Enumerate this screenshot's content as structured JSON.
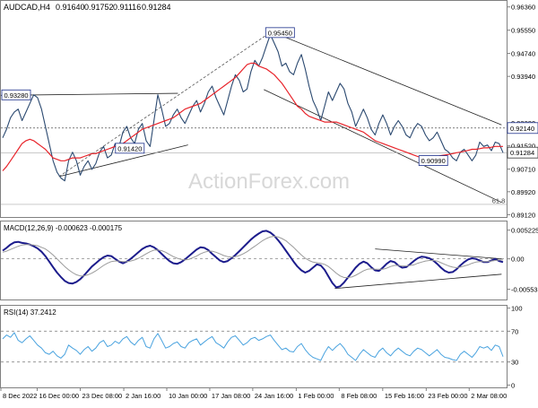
{
  "chart_data": [
    {
      "type": "line",
      "panel": "price",
      "title": "AUDCAD,H4",
      "ohlc": [
        "0.91640",
        "0.91752",
        "0.91116",
        "0.91284"
      ],
      "watermark": "ActionForex.com",
      "y_ticks": [
        {
          "v": 0.9636,
          "label": "0.96360"
        },
        {
          "v": 0.9555,
          "label": "0.95550"
        },
        {
          "v": 0.9474,
          "label": "0.94740"
        },
        {
          "v": 0.9394,
          "label": "0.93940"
        },
        {
          "v": 0.9232,
          "label": "0.92320"
        },
        {
          "v": 0.9152,
          "label": "0.91520"
        },
        {
          "v": 0.9071,
          "label": "0.90710"
        },
        {
          "v": 0.8992,
          "label": "0.89920"
        },
        {
          "v": 0.8912,
          "label": "0.89120"
        }
      ],
      "ylim": [
        0.8904,
        0.9657
      ],
      "grid": false,
      "price_flag": {
        "v": 0.91284,
        "label": "0.91284"
      },
      "level_tag": {
        "v": 0.9214,
        "label": "0.92140"
      },
      "annotations": [
        {
          "label": "0.95450",
          "v": 0.9545,
          "x": 0.552
        },
        {
          "label": "0.93280",
          "v": 0.9328,
          "x": 0.003
        },
        {
          "label": "0.91420",
          "v": 0.9142,
          "x": 0.255
        },
        {
          "label": "0.90990",
          "v": 0.9099,
          "x": 0.855
        },
        {
          "label": "61.8",
          "v": 0.8948,
          "x": 0.997
        }
      ],
      "series": [
        {
          "values": [
            0.918,
            0.921,
            0.925,
            0.927,
            0.928,
            0.924,
            0.927,
            0.93,
            0.933,
            0.932,
            0.928,
            0.922,
            0.916,
            0.91,
            0.906,
            0.904,
            0.903,
            0.91,
            0.913,
            0.91,
            0.905,
            0.908,
            0.91,
            0.907,
            0.909,
            0.913,
            0.915,
            0.911,
            0.912,
            0.916,
            0.915,
            0.92,
            0.922,
            0.918,
            0.916,
            0.921,
            0.923,
            0.917,
            0.915,
            0.924,
            0.933,
            0.928,
            0.922,
            0.923,
            0.926,
            0.928,
            0.925,
            0.923,
            0.926,
            0.929,
            0.931,
            0.927,
            0.93,
            0.934,
            0.936,
            0.932,
            0.929,
            0.926,
            0.931,
            0.936,
            0.94,
            0.938,
            0.934,
            0.935,
            0.941,
            0.945,
            0.943,
            0.946,
            0.95,
            0.954,
            0.951,
            0.948,
            0.943,
            0.944,
            0.941,
            0.94,
            0.944,
            0.947,
            0.942,
            0.936,
            0.931,
            0.928,
            0.924,
            0.929,
            0.934,
            0.931,
            0.934,
            0.937,
            0.935,
            0.93,
            0.927,
            0.922,
            0.925,
            0.928,
            0.925,
            0.921,
            0.919,
            0.923,
            0.926,
            0.923,
            0.919,
            0.922,
            0.924,
            0.922,
            0.919,
            0.918,
            0.921,
            0.923,
            0.922,
            0.919,
            0.917,
            0.918,
            0.92,
            0.917,
            0.914,
            0.913,
            0.911,
            0.91,
            0.913,
            0.914,
            0.912,
            0.91,
            0.912,
            0.9165,
            0.915,
            0.9155,
            0.9135,
            0.9165,
            0.916,
            0.9128
          ]
        },
        {
          "values": [
            0.9065,
            0.908,
            0.91,
            0.912,
            0.914,
            0.916,
            0.917,
            0.9175,
            0.917,
            0.916,
            0.915,
            0.914,
            0.9125,
            0.911,
            0.9105,
            0.91,
            0.91,
            0.9105,
            0.911,
            0.911,
            0.911,
            0.9115,
            0.912,
            0.9125,
            0.9125,
            0.913,
            0.9135,
            0.914,
            0.9145,
            0.915,
            0.9155,
            0.916,
            0.917,
            0.918,
            0.919,
            0.92,
            0.921,
            0.9215,
            0.922,
            0.9225,
            0.923,
            0.9235,
            0.924,
            0.9245,
            0.925,
            0.926,
            0.927,
            0.928,
            0.9285,
            0.929,
            0.9295,
            0.93,
            0.931,
            0.932,
            0.933,
            0.934,
            0.935,
            0.936,
            0.937,
            0.938,
            0.939,
            0.9405,
            0.942,
            0.9435,
            0.944,
            0.944,
            0.943,
            0.9425,
            0.942,
            0.941,
            0.94,
            0.9385,
            0.937,
            0.935,
            0.933,
            0.931,
            0.929,
            0.928,
            0.9265,
            0.9255,
            0.925,
            0.9245,
            0.924,
            0.9235,
            0.9235,
            0.9235,
            0.9235,
            0.923,
            0.9225,
            0.922,
            0.9215,
            0.921,
            0.9205,
            0.92,
            0.919,
            0.918,
            0.917,
            0.9165,
            0.916,
            0.9155,
            0.915,
            0.9145,
            0.914,
            0.9135,
            0.913,
            0.9125,
            0.912,
            0.9115,
            0.911,
            0.911,
            0.911,
            0.9112,
            0.9115,
            0.9118,
            0.912,
            0.9122,
            0.9125,
            0.9128,
            0.913,
            0.9133,
            0.9136,
            0.914,
            0.914,
            0.9142,
            0.9145,
            0.9145,
            0.9147,
            0.915,
            0.915,
            0.915
          ]
        }
      ]
    },
    {
      "type": "line",
      "panel": "macd",
      "title": "MACD(12,26,9) -0.000623 -0.000175",
      "y_ticks": [
        {
          "v": 0.00523,
          "label": "0.005225"
        },
        {
          "v": 0.0,
          "label": "0.00"
        },
        {
          "v": -0.00553,
          "label": "-0.00553"
        }
      ],
      "ylim": [
        -0.0074,
        0.0068
      ],
      "series": [
        {
          "values": [
            0.0015,
            0.002,
            0.0026,
            0.003,
            0.0031,
            0.0029,
            0.0028,
            0.0026,
            0.0023,
            0.0019,
            0.0013,
            0.0005,
            -0.0005,
            -0.0015,
            -0.0025,
            -0.0033,
            -0.004,
            -0.0044,
            -0.0045,
            -0.0042,
            -0.0037,
            -0.003,
            -0.0022,
            -0.0014,
            -0.0008,
            -0.0002,
            0.0003,
            0.0006,
            0.0005,
            0.0,
            -0.0005,
            -0.0008,
            -0.0005,
            0.0,
            0.0006,
            0.0012,
            0.0018,
            0.0022,
            0.0024,
            0.0021,
            0.0016,
            0.0009,
            0.0002,
            -0.0004,
            -0.0008,
            -0.0009,
            -0.0006,
            -0.0001,
            0.0005,
            0.0011,
            0.0017,
            0.0021,
            0.002,
            0.0016,
            0.0009,
            0.0003,
            -0.0003,
            -0.0006,
            -0.0004,
            0.0001,
            0.0007,
            0.0014,
            0.0021,
            0.0028,
            0.0035,
            0.0041,
            0.0046,
            0.005,
            0.0051,
            0.0048,
            0.0042,
            0.0034,
            0.0025,
            0.0015,
            0.0005,
            -0.0005,
            -0.0014,
            -0.0021,
            -0.0025,
            -0.0022,
            -0.0016,
            -0.001,
            -0.0012,
            -0.002,
            -0.0032,
            -0.0044,
            -0.0052,
            -0.005,
            -0.0043,
            -0.0034,
            -0.0025,
            -0.0016,
            -0.0009,
            -0.0005,
            -0.0008,
            -0.0015,
            -0.0021,
            -0.0022,
            -0.0016,
            -0.0009,
            -0.0004,
            -0.0006,
            -0.0012,
            -0.0016,
            -0.0015,
            -0.001,
            -0.0004,
            0.0001,
            0.0004,
            0.0003,
            0.0001,
            -0.0003,
            -0.0009,
            -0.0016,
            -0.0022,
            -0.0025,
            -0.0024,
            -0.0019,
            -0.0012,
            -0.0006,
            -0.0001,
            0.0001,
            0.0,
            -0.0003,
            -0.0006,
            -0.0006,
            -0.0003,
            0.0,
            -0.0004,
            -0.0006
          ]
        },
        {
          "values": [
            0.0012,
            0.0014,
            0.0017,
            0.002,
            0.0023,
            0.0025,
            0.0026,
            0.0026,
            0.0025,
            0.0024,
            0.0021,
            0.0018,
            0.0013,
            0.0007,
            0.0,
            -0.0007,
            -0.0014,
            -0.002,
            -0.0025,
            -0.0029,
            -0.0031,
            -0.0031,
            -0.0029,
            -0.0026,
            -0.0022,
            -0.0017,
            -0.0012,
            -0.0008,
            -0.0005,
            -0.0004,
            -0.0004,
            -0.0005,
            -0.0005,
            -0.0004,
            -0.0002,
            0.0001,
            0.0005,
            0.0009,
            0.0013,
            0.0016,
            0.0016,
            0.0015,
            0.0012,
            0.0008,
            0.0004,
            0.0001,
            -0.0001,
            -0.0002,
            -0.0001,
            0.0002,
            0.0005,
            0.0009,
            0.0012,
            0.0014,
            0.0014,
            0.0012,
            0.0009,
            0.0006,
            0.0004,
            0.0003,
            0.0004,
            0.0006,
            0.0009,
            0.0013,
            0.0018,
            0.0023,
            0.0028,
            0.0033,
            0.0037,
            0.004,
            0.0041,
            0.004,
            0.0037,
            0.0033,
            0.0027,
            0.0021,
            0.0014,
            0.0007,
            0.0001,
            -0.0003,
            -0.0006,
            -0.0007,
            -0.0008,
            -0.001,
            -0.0014,
            -0.002,
            -0.0026,
            -0.0031,
            -0.0034,
            -0.0034,
            -0.0033,
            -0.003,
            -0.0026,
            -0.0022,
            -0.0019,
            -0.0018,
            -0.0019,
            -0.0019,
            -0.0019,
            -0.0017,
            -0.0014,
            -0.0012,
            -0.0012,
            -0.0013,
            -0.0013,
            -0.0012,
            -0.0011,
            -0.0008,
            -0.0006,
            -0.0004,
            -0.0003,
            -0.0003,
            -0.0004,
            -0.0007,
            -0.001,
            -0.0013,
            -0.0015,
            -0.0016,
            -0.0015,
            -0.0013,
            -0.0011,
            -0.0008,
            -0.0006,
            -0.0005,
            -0.0005,
            -0.0005,
            -0.0004,
            -0.0003,
            -0.0002,
            -0.0002
          ]
        }
      ]
    },
    {
      "type": "line",
      "panel": "rsi",
      "title": "RSI(14) 37.2412",
      "y_ticks": [
        {
          "v": 100,
          "label": "100"
        },
        {
          "v": 70,
          "label": "70"
        },
        {
          "v": 30,
          "label": "30"
        },
        {
          "v": 0,
          "label": "0"
        }
      ],
      "ylim": [
        -3,
        103
      ],
      "series": [
        {
          "values": [
            60,
            65,
            62,
            68,
            58,
            55,
            60,
            64,
            58,
            52,
            48,
            42,
            40,
            44,
            38,
            35,
            40,
            52,
            48,
            45,
            40,
            46,
            50,
            44,
            48,
            55,
            58,
            50,
            52,
            57,
            54,
            60,
            63,
            56,
            52,
            58,
            62,
            50,
            48,
            60,
            67,
            58,
            48,
            50,
            54,
            56,
            50,
            48,
            55,
            58,
            60,
            52,
            56,
            60,
            63,
            55,
            52,
            48,
            56,
            62,
            64,
            58,
            52,
            55,
            60,
            62,
            58,
            60,
            63,
            65,
            58,
            52,
            46,
            48,
            44,
            43,
            50,
            54,
            46,
            40,
            36,
            34,
            32,
            42,
            50,
            45,
            50,
            54,
            48,
            40,
            36,
            32,
            40,
            46,
            42,
            38,
            36,
            44,
            48,
            42,
            38,
            44,
            48,
            44,
            40,
            38,
            44,
            48,
            46,
            42,
            38,
            42,
            46,
            40,
            36,
            35,
            33,
            32,
            40,
            44,
            40,
            36,
            42,
            50,
            48,
            50,
            45,
            52,
            50,
            37
          ]
        }
      ]
    }
  ],
  "x_axis": {
    "labels": [
      {
        "label": "8 Dec 2022",
        "x": 0.0
      },
      {
        "label": "16 Dec 00:00",
        "x": 0.0717
      },
      {
        "label": "23 Dec 08:00",
        "x": 0.157
      },
      {
        "label": "2 Jan 16:00",
        "x": 0.243
      },
      {
        "label": "10 Jan 00:00",
        "x": 0.328
      },
      {
        "label": "17 Jan 08:00",
        "x": 0.413
      },
      {
        "label": "24 Jan 16:00",
        "x": 0.498
      },
      {
        "label": "1 Feb 00:00",
        "x": 0.584
      },
      {
        "label": "8 Feb 08:00",
        "x": 0.669
      },
      {
        "label": "15 Feb 16:00",
        "x": 0.755
      },
      {
        "label": "23 Feb 00:00",
        "x": 0.841
      },
      {
        "label": "2 Mar 08:00",
        "x": 0.926
      }
    ]
  },
  "colors": {
    "price": "#2b4970",
    "ma": "#e8232a",
    "macd": "#1c1c8c",
    "signal": "#9a9a9a",
    "rsi": "#4aa3df",
    "trend": "#222222",
    "dashed": "#555555",
    "watermark": "#d8d8d8"
  }
}
